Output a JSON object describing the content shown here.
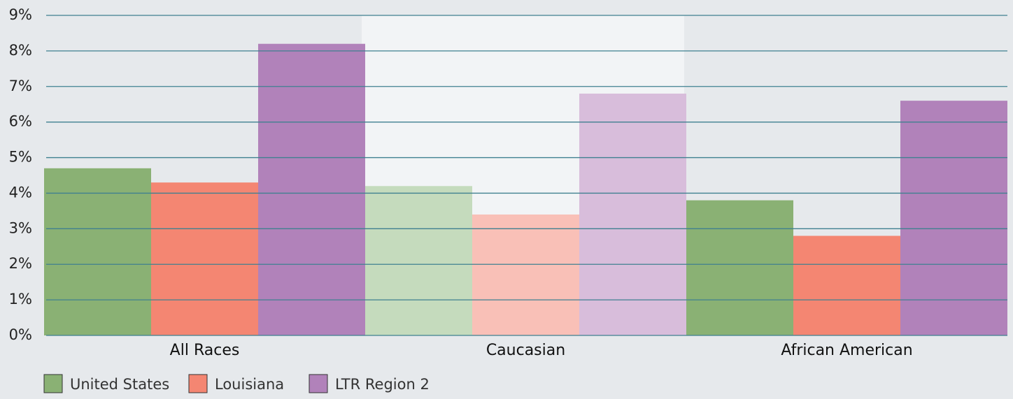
{
  "chart_data": {
    "type": "bar",
    "categories": [
      "All  Races",
      "Caucasian",
      "African American"
    ],
    "series": [
      {
        "name": "United States",
        "color": "#8ab174",
        "colors": [
          "#8ab174",
          "#c5dbbd",
          "#8ab174"
        ],
        "values": [
          4.7,
          4.2,
          3.8
        ]
      },
      {
        "name": "Louisiana",
        "color": "#f48672",
        "colors": [
          "#f48672",
          "#f9c0b7",
          "#f48672"
        ],
        "values": [
          4.3,
          3.4,
          2.8
        ]
      },
      {
        "name": "LTR Region 2",
        "color": "#b182ba",
        "colors": [
          "#b182ba",
          "#d8bddb",
          "#b182ba"
        ],
        "values": [
          8.2,
          6.8,
          6.6
        ]
      }
    ],
    "ylim": [
      0,
      9
    ],
    "yticks": [
      {
        "value": 0,
        "label": "0%"
      },
      {
        "value": 1,
        "label": "1%"
      },
      {
        "value": 2,
        "label": "2%"
      },
      {
        "value": 3,
        "label": "3%"
      },
      {
        "value": 4,
        "label": "4%"
      },
      {
        "value": 5,
        "label": "5%"
      },
      {
        "value": 6,
        "label": "6%"
      },
      {
        "value": 7,
        "label": "7%"
      },
      {
        "value": 8,
        "label": "8%"
      },
      {
        "value": 9,
        "label": "9%"
      }
    ],
    "grid": true,
    "grid_color": "#3f8090",
    "legend": "bottom-left"
  }
}
